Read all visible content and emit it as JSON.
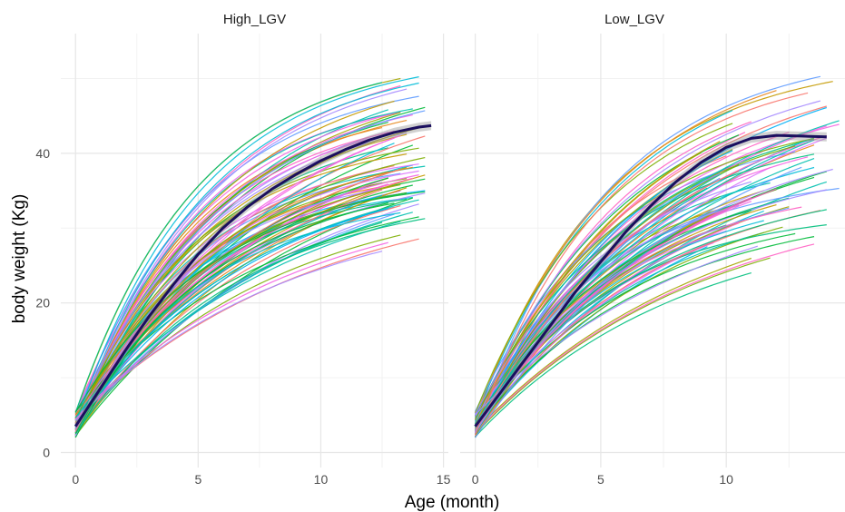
{
  "chart_data": {
    "type": "line",
    "xlabel": "Age (month)",
    "ylabel": "body weight (Kg)",
    "xlim": [
      -0.6,
      15.2
    ],
    "ylim": [
      -2,
      56
    ],
    "x_ticks": [
      0,
      5,
      10,
      15
    ],
    "y_ticks": [
      0,
      20,
      40
    ],
    "grid": true,
    "legend": "none",
    "panels": [
      {
        "strip_label": "High_LGV",
        "mean_curve": {
          "x": [
            0,
            1,
            2,
            3,
            4,
            5,
            6,
            7,
            8,
            9,
            10,
            11,
            12,
            13,
            14,
            14.5
          ],
          "y": [
            3.5,
            8.5,
            13.5,
            18.2,
            22.5,
            26.5,
            30.0,
            32.8,
            35.2,
            37.2,
            39.0,
            40.5,
            41.8,
            42.8,
            43.5,
            43.7
          ]
        },
        "individuals": {
          "count": 90,
          "asymptote_range": [
            34,
            55
          ],
          "rate_range": [
            0.1,
            0.21
          ],
          "initial_weight_range": [
            2,
            5.5
          ],
          "last_age_range": [
            12.5,
            14.5
          ]
        }
      },
      {
        "strip_label": "Low_LGV",
        "mean_curve": {
          "x": [
            0,
            1,
            2,
            3,
            4,
            5,
            6,
            7,
            8,
            9,
            10,
            11,
            12,
            13,
            14
          ],
          "y": [
            3.5,
            8.0,
            12.5,
            17.0,
            21.5,
            25.5,
            29.5,
            33.0,
            36.2,
            38.8,
            40.8,
            42.0,
            42.4,
            42.3,
            42.2
          ]
        },
        "individuals": {
          "count": 90,
          "asymptote_range": [
            32,
            55
          ],
          "rate_range": [
            0.1,
            0.19
          ],
          "initial_weight_range": [
            2,
            5.5
          ],
          "last_age_range": [
            9,
            14.7
          ]
        }
      }
    ],
    "series_colors": [
      "#F8766D",
      "#E7861B",
      "#C49A00",
      "#A3A500",
      "#7CAE00",
      "#00BA38",
      "#00BF7D",
      "#00C0AF",
      "#00BCD8",
      "#00B0F6",
      "#619CFF",
      "#A58AFF",
      "#DB72FB",
      "#F564E3",
      "#FF61C3"
    ],
    "mean_color": "#1b0f5e"
  }
}
